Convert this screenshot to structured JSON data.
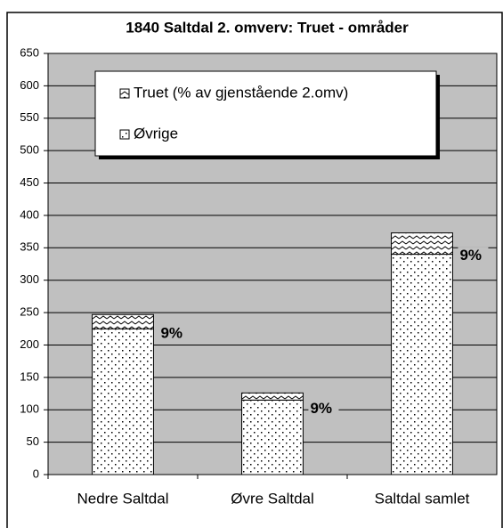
{
  "chart_data": {
    "type": "bar",
    "stacked": true,
    "title": "1840 Saltdal 2. omverv: Truet - områder",
    "categories": [
      "Nedre Saltdal",
      "Øvre Saltdal",
      "Saltdal samlet"
    ],
    "series": [
      {
        "name": "Øvrige",
        "color": "#ffffff",
        "values": [
          225,
          115,
          340
        ]
      },
      {
        "name": "Truet (% av gjenstående 2.omv)",
        "color": "#ffffff",
        "values": [
          22,
          11,
          33
        ]
      }
    ],
    "annotations": [
      "9%",
      "9%",
      "9%"
    ],
    "ylim": [
      0,
      650
    ],
    "yticks": [
      0,
      50,
      100,
      150,
      200,
      250,
      300,
      350,
      400,
      450,
      500,
      550,
      600,
      650
    ],
    "grid": true,
    "background": "#c0c0c0"
  }
}
